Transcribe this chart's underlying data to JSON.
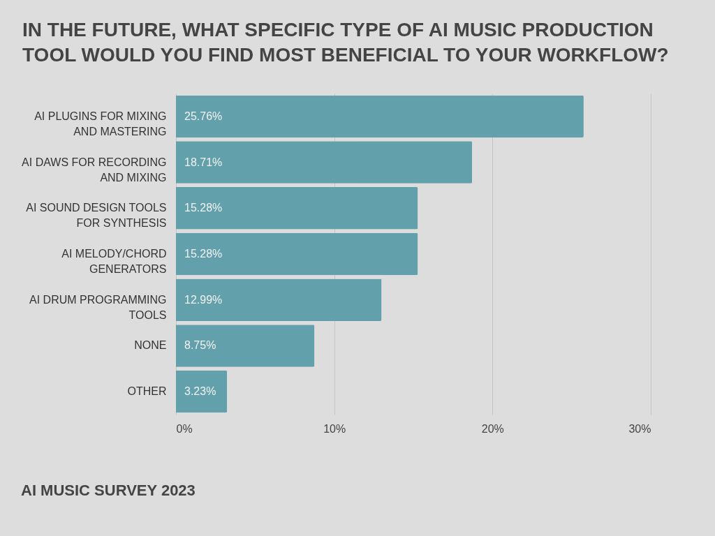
{
  "chart_data": {
    "type": "bar",
    "orientation": "horizontal",
    "title": "IN THE FUTURE, WHAT SPECIFIC TYPE OF AI MUSIC PRODUCTION TOOL WOULD YOU FIND MOST BENEFICIAL TO YOUR WORKFLOW?",
    "categories": [
      "AI PLUGINS FOR MIXING AND MASTERING",
      "AI DAWS FOR RECORDING AND MIXING",
      "AI SOUND DESIGN TOOLS FOR SYNTHESIS",
      "AI MELODY/CHORD GENERATORS",
      "AI DRUM PROGRAMMING TOOLS",
      "NONE",
      "OTHER"
    ],
    "values": [
      25.76,
      18.71,
      15.28,
      15.28,
      12.99,
      8.75,
      3.23
    ],
    "value_labels": [
      "25.76%",
      "18.71%",
      "15.28%",
      "15.28%",
      "12.99%",
      "8.75%",
      "3.23%"
    ],
    "color": "#62a0ab",
    "xlim": [
      0,
      30
    ],
    "xticks": [
      {
        "value": 0,
        "label": "0%"
      },
      {
        "value": 10,
        "label": "10%"
      },
      {
        "value": 20,
        "label": "20%"
      },
      {
        "value": 30,
        "label": "30%"
      }
    ],
    "grid": "x",
    "annotations": [
      "AI MUSIC SURVEY 2023"
    ]
  }
}
